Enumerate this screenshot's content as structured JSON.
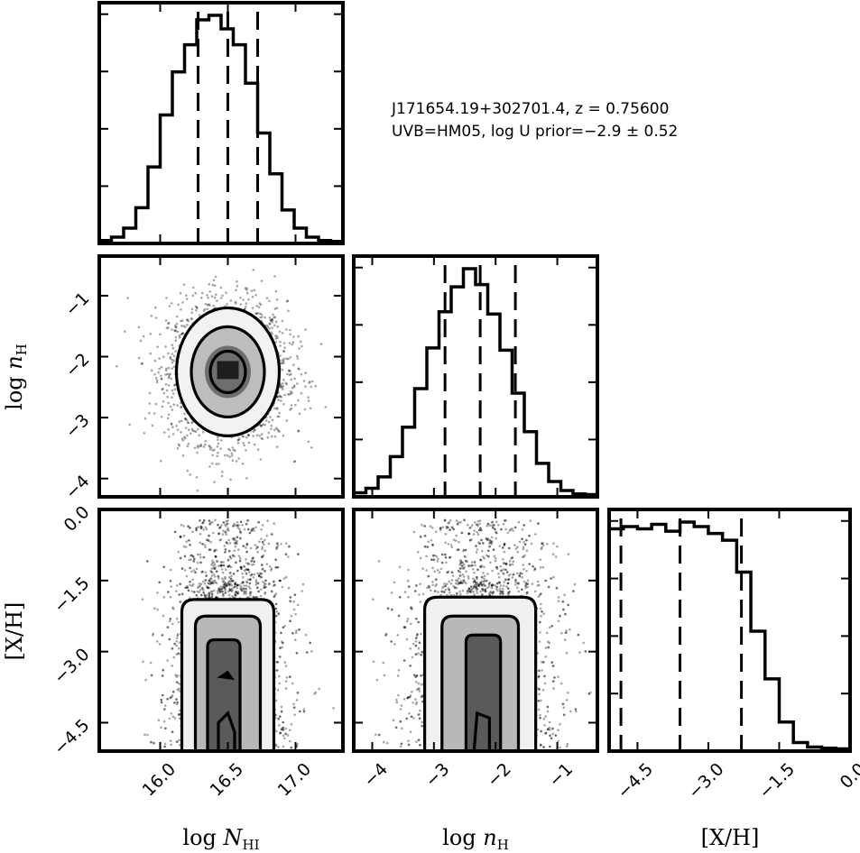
{
  "annotation": {
    "line1": "J171654.19+302701.4, z = 0.75600",
    "line2": "UVB=HM05, log U prior=−2.9 ± 0.52"
  },
  "chart_data": {
    "type": "corner",
    "params": [
      {
        "key": "NHI",
        "label": "log N_HI",
        "range": [
          15.55,
          17.35
        ],
        "ticks": [
          "16.0",
          "16.5",
          "17.0"
        ],
        "tick_values": [
          16.0,
          16.5,
          17.0
        ],
        "quantiles": [
          16.28,
          16.5,
          16.72
        ]
      },
      {
        "key": "nH",
        "label": "log n_H",
        "range": [
          -4.3,
          -0.35
        ],
        "ticks": [
          "−4",
          "−3",
          "−2",
          "−1"
        ],
        "tick_values": [
          -4,
          -3,
          -2,
          -1
        ],
        "quantiles": [
          -2.82,
          -2.25,
          -1.68
        ]
      },
      {
        "key": "XH",
        "label": "[X/H]",
        "range": [
          -5.1,
          0.0
        ],
        "ticks": [
          "−4.5",
          "−3.0",
          "−1.5",
          "0.0"
        ],
        "tick_values": [
          -4.5,
          -3.0,
          -1.5,
          0.0
        ],
        "quantiles": [
          -4.85,
          -3.6,
          -2.3
        ]
      }
    ],
    "y_axis_labels": {
      "nH": {
        "label": "log n_H",
        "ticks": [
          "−4",
          "−3",
          "−2",
          "−1"
        ],
        "tick_values": [
          -4,
          -3,
          -2,
          -1
        ]
      },
      "XH": {
        "label": "[X/H]",
        "ticks": [
          "−4.5",
          "−3.0",
          "−1.5",
          "0.0"
        ],
        "tick_values": [
          -4.5,
          -3.0,
          -1.5,
          0.0
        ]
      }
    },
    "histograms": {
      "NHI": {
        "bin_edges": [
          15.55,
          15.64,
          15.73,
          15.82,
          15.91,
          16.0,
          16.09,
          16.18,
          16.27,
          16.36,
          16.45,
          16.54,
          16.63,
          16.72,
          16.81,
          16.9,
          16.99,
          17.08,
          17.17,
          17.26,
          17.35
        ],
        "counts": [
          0.005,
          0.02,
          0.06,
          0.15,
          0.33,
          0.56,
          0.75,
          0.87,
          0.98,
          1.0,
          0.94,
          0.87,
          0.7,
          0.48,
          0.3,
          0.14,
          0.06,
          0.02,
          0.005,
          0.001
        ]
      },
      "nH": {
        "bin_edges": [
          -4.3,
          -4.1025,
          -3.905,
          -3.7075,
          -3.51,
          -3.3125,
          -3.115,
          -2.9175,
          -2.72,
          -2.5225,
          -2.325,
          -2.1275,
          -1.93,
          -1.7325,
          -1.535,
          -1.3375,
          -1.14,
          -0.9425,
          -0.745,
          -0.5475,
          -0.35
        ],
        "counts": [
          0.01,
          0.03,
          0.08,
          0.17,
          0.3,
          0.47,
          0.65,
          0.81,
          0.92,
          1.0,
          0.93,
          0.8,
          0.64,
          0.45,
          0.28,
          0.14,
          0.06,
          0.02,
          0.005,
          0.002
        ]
      },
      "XH": {
        "bin_edges": [
          -5.1,
          -4.8,
          -4.5,
          -4.2,
          -3.9,
          -3.6,
          -3.3,
          -3.0,
          -2.7,
          -2.4,
          -2.1,
          -1.8,
          -1.5,
          -1.2,
          -0.9,
          -0.6,
          -0.3,
          0.0
        ],
        "counts": [
          0.97,
          0.98,
          0.97,
          0.99,
          0.96,
          1.0,
          0.98,
          0.95,
          0.92,
          0.78,
          0.52,
          0.31,
          0.12,
          0.03,
          0.01,
          0.005,
          0.002
        ]
      }
    },
    "joint": {
      "NHI_vs_nH": {
        "center": [
          16.5,
          -2.25
        ],
        "sigma": [
          0.19,
          0.5
        ],
        "levels_halfwidths": [
          [
            0.38,
            1.05
          ],
          [
            0.27,
            0.74
          ],
          [
            0.13,
            0.34
          ]
        ]
      },
      "NHI_vs_XH": {
        "center": [
          16.5,
          -3.4
        ],
        "sigma": [
          0.17,
          1.0
        ],
        "top": -1.9
      },
      "nH_vs_XH": {
        "center": [
          -2.25,
          -3.4
        ],
        "sigma": [
          0.45,
          1.0
        ],
        "top": -1.85
      }
    },
    "grid": false
  }
}
